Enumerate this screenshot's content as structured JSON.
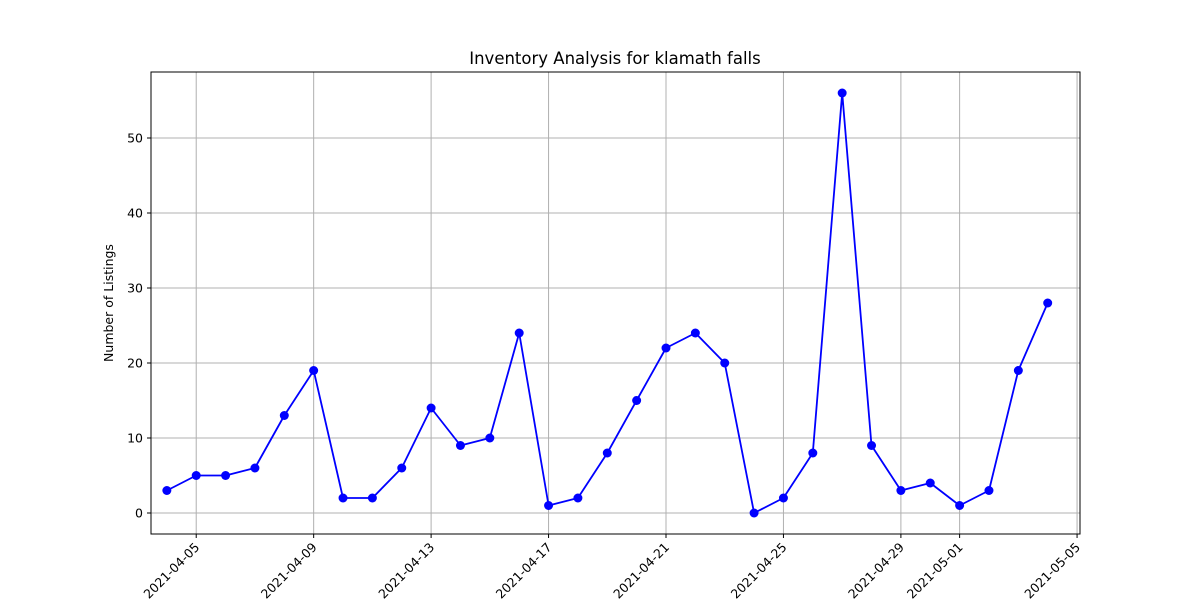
{
  "chart_data": {
    "type": "line",
    "title": "Inventory Analysis for klamath falls",
    "xlabel": "",
    "ylabel": "Number of Listings",
    "grid": true,
    "line_color": "#0000ff",
    "marker": "circle",
    "x": [
      "2021-04-04",
      "2021-04-05",
      "2021-04-06",
      "2021-04-07",
      "2021-04-08",
      "2021-04-09",
      "2021-04-10",
      "2021-04-11",
      "2021-04-12",
      "2021-04-13",
      "2021-04-14",
      "2021-04-15",
      "2021-04-16",
      "2021-04-17",
      "2021-04-18",
      "2021-04-19",
      "2021-04-20",
      "2021-04-21",
      "2021-04-22",
      "2021-04-23",
      "2021-04-24",
      "2021-04-25",
      "2021-04-26",
      "2021-04-27",
      "2021-04-28",
      "2021-04-29",
      "2021-04-30",
      "2021-05-01",
      "2021-05-02",
      "2021-05-03",
      "2021-05-04"
    ],
    "y": [
      3,
      5,
      5,
      6,
      13,
      19,
      2,
      2,
      6,
      14,
      9,
      10,
      24,
      1,
      2,
      8,
      15,
      22,
      24,
      20,
      0,
      2,
      8,
      56,
      9,
      3,
      4,
      1,
      3,
      19,
      28
    ],
    "xlim": [
      "2021-04-02",
      "2021-05-05"
    ],
    "ylim": [
      -2.8,
      58.8
    ],
    "x_ticks": [
      "2021-04-05",
      "2021-04-09",
      "2021-04-13",
      "2021-04-17",
      "2021-04-21",
      "2021-04-25",
      "2021-04-29",
      "2021-05-01",
      "2021-05-05"
    ],
    "y_ticks": [
      0,
      10,
      20,
      30,
      40,
      50
    ]
  }
}
